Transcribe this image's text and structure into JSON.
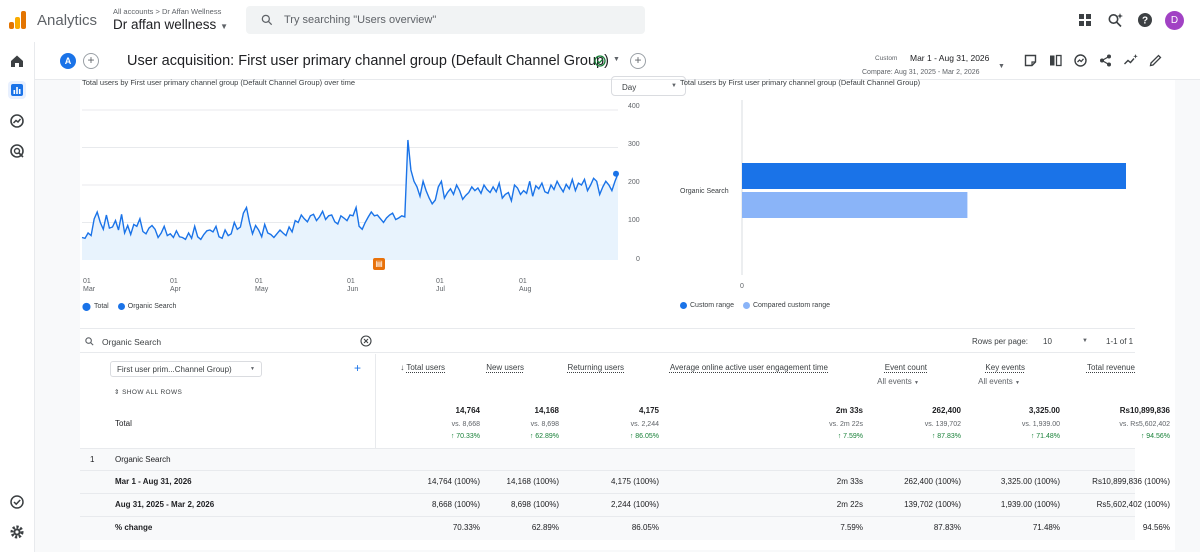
{
  "topbar": {
    "app_name": "Analytics",
    "account_path": "All accounts > Dr Affan Wellness",
    "account_name": "Dr affan wellness",
    "search_placeholder": "Try searching \"Users overview\"",
    "avatar_letter": "D"
  },
  "report": {
    "badge": "A",
    "title": "User acquisition: First user primary channel group (Default Channel Group)",
    "custom_label": "Custom",
    "date_range": "Mar 1 - Aug 31, 2026",
    "compare_range": "Compare: Aug 31, 2025 - Mar 2, 2026"
  },
  "line_chart": {
    "title": "Total users by First user primary channel group (Default Channel Group) over time",
    "granularity": "Day",
    "y_ticks": [
      "400",
      "300",
      "200",
      "100",
      "0"
    ],
    "x_ticks": [
      {
        "day": "01",
        "month": "Mar"
      },
      {
        "day": "01",
        "month": "Apr"
      },
      {
        "day": "01",
        "month": "May"
      },
      {
        "day": "01",
        "month": "Jun"
      },
      {
        "day": "01",
        "month": "Jul"
      },
      {
        "day": "01",
        "month": "Aug"
      }
    ],
    "legend": [
      {
        "label": "Total",
        "color": "#1a73e8"
      },
      {
        "label": "Organic Search",
        "color": "#1a73e8"
      }
    ]
  },
  "bar_chart": {
    "title": "Total users by First user primary channel group (Default Channel Group)",
    "category": "Organic Search",
    "x_tick": "0",
    "legend": [
      {
        "label": "Custom range",
        "color": "#1a73e8"
      },
      {
        "label": "Compared custom range",
        "color": "#8ab4f8"
      }
    ]
  },
  "chart_data": [
    {
      "type": "line",
      "title": "Total users by First user primary channel group (Default Channel Group) over time",
      "ylim": [
        0,
        400
      ],
      "x_labels": [
        "01 Mar",
        "01 Apr",
        "01 May",
        "01 Jun",
        "01 Jul",
        "01 Aug"
      ],
      "series": [
        {
          "name": "Organic Search",
          "values": [
            60,
            58,
            72,
            65,
            110,
            128,
            100,
            82,
            120,
            85,
            88,
            105,
            80,
            122,
            72,
            92,
            68,
            95,
            90,
            110,
            76,
            70,
            85,
            92,
            82,
            60,
            72,
            90,
            65,
            70,
            60,
            78,
            62,
            60,
            55,
            72,
            58,
            90,
            62,
            55,
            68,
            78,
            80,
            75,
            90,
            62,
            58,
            80,
            65,
            70,
            100,
            82,
            88,
            125,
            140,
            100,
            70,
            92,
            80,
            62,
            95,
            72,
            68,
            60,
            70,
            80,
            72,
            65,
            88,
            75,
            105,
            100,
            120,
            110,
            102,
            118,
            122,
            105,
            115,
            130,
            108,
            118,
            120,
            102,
            96,
            118,
            112,
            105,
            120,
            118,
            140,
            90,
            82,
            100,
            115,
            128,
            118,
            120,
            110,
            100,
            112,
            120,
            125,
            108,
            112,
            118,
            115,
            320,
            240,
            210,
            195,
            170,
            210,
            185,
            165,
            150,
            160,
            195,
            210,
            165,
            180,
            190,
            175,
            200,
            185,
            162,
            172,
            180,
            195,
            185,
            192,
            178,
            200,
            188,
            180,
            195,
            182,
            205,
            165,
            175,
            180,
            158,
            200,
            192,
            175,
            185,
            178,
            210,
            170,
            198,
            190,
            205,
            182,
            178,
            200,
            188,
            210,
            195,
            182,
            202,
            190,
            215,
            185,
            205,
            200,
            215,
            185,
            200,
            218,
            210,
            175,
            195,
            210,
            200,
            185,
            210,
            230
          ]
        }
      ]
    },
    {
      "type": "bar",
      "title": "Total users by First user primary channel group (Default Channel Group)",
      "categories": [
        "Organic Search"
      ],
      "series": [
        {
          "name": "Custom range",
          "values": [
            14764
          ]
        },
        {
          "name": "Compared custom range",
          "values": [
            8668
          ]
        }
      ]
    }
  ],
  "table": {
    "search_value": "Organic Search",
    "rows_per_page_label": "Rows per page:",
    "rows_per_page": "10",
    "pagination": "1-1 of 1",
    "dimension_selector": "First user prim...Channel Group)",
    "show_all_rows": "SHOW ALL ROWS",
    "columns": [
      {
        "label": "Total users",
        "sub": ""
      },
      {
        "label": "New users",
        "sub": ""
      },
      {
        "label": "Returning users",
        "sub": ""
      },
      {
        "label": "Average online active user engagement time",
        "sub": ""
      },
      {
        "label": "Event count",
        "sub": "All events"
      },
      {
        "label": "Key events",
        "sub": "All events"
      },
      {
        "label": "Total revenue",
        "sub": ""
      }
    ],
    "total": {
      "label": "Total",
      "values": [
        "14,764",
        "14,168",
        "4,175",
        "2m 33s",
        "262,400",
        "3,325.00",
        "Rs10,899,836"
      ],
      "compare": [
        "vs. 8,668",
        "vs. 8,698",
        "vs. 2,244",
        "vs. 2m 22s",
        "vs. 139,702",
        "vs. 1,939.00",
        "vs. Rs5,602,402"
      ],
      "change": [
        "↑ 70.33%",
        "↑ 62.89%",
        "↑ 86.05%",
        "↑ 7.59%",
        "↑ 87.83%",
        "↑ 71.48%",
        "↑ 94.56%"
      ]
    },
    "group": {
      "index": "1",
      "label": "Organic Search"
    },
    "rows": [
      {
        "label": "Mar 1 - Aug 31, 2026",
        "values": [
          "14,764 (100%)",
          "14,168 (100%)",
          "4,175 (100%)",
          "2m 33s",
          "262,400 (100%)",
          "3,325.00 (100%)",
          "Rs10,899,836 (100%)"
        ]
      },
      {
        "label": "Aug 31, 2025 - Mar 2, 2026",
        "values": [
          "8,668 (100%)",
          "8,698 (100%)",
          "2,244 (100%)",
          "2m 22s",
          "139,702 (100%)",
          "1,939.00 (100%)",
          "Rs5,602,402 (100%)"
        ]
      },
      {
        "label": "% change",
        "values": [
          "70.33%",
          "62.89%",
          "86.05%",
          "7.59%",
          "87.83%",
          "71.48%",
          "94.56%"
        ]
      }
    ]
  }
}
